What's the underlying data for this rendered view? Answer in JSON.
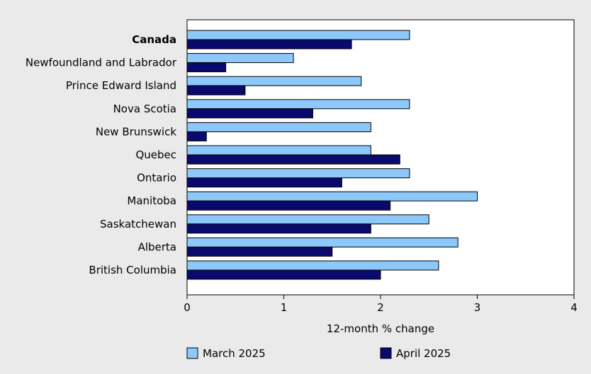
{
  "chart_data": {
    "type": "bar",
    "orientation": "horizontal",
    "categories": [
      "Canada",
      "Newfoundland and Labrador",
      "Prince Edward Island",
      "Nova Scotia",
      "New Brunswick",
      "Quebec",
      "Ontario",
      "Manitoba",
      "Saskatchewan",
      "Alberta",
      "British Columbia"
    ],
    "bold_categories": [
      "Canada"
    ],
    "series": [
      {
        "name": "March 2025",
        "color": "#8cc8fa",
        "values": [
          2.3,
          1.1,
          1.8,
          2.3,
          1.9,
          1.9,
          2.3,
          3.0,
          2.5,
          2.8,
          2.6
        ]
      },
      {
        "name": "April 2025",
        "color": "#0a0a6e",
        "values": [
          1.7,
          0.4,
          0.6,
          1.3,
          0.2,
          2.2,
          1.6,
          2.1,
          1.9,
          1.5,
          2.0
        ]
      }
    ],
    "xlabel": "12-month % change",
    "ylabel": "",
    "xlim": [
      0,
      4
    ],
    "xticks": [
      "0",
      "1",
      "2",
      "3",
      "4"
    ],
    "grid": false,
    "legend_position": "bottom"
  }
}
